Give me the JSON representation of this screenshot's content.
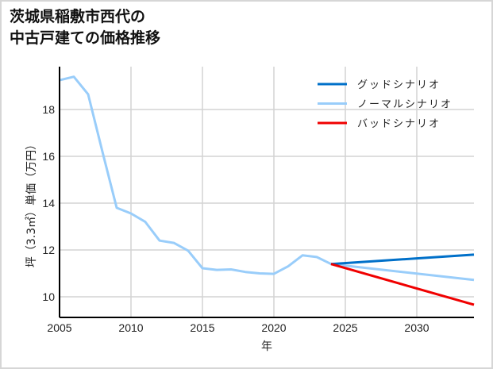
{
  "chart_data": {
    "type": "line",
    "title": "茨城県稲敷市西代の中古戸建ての価格推移",
    "title_lines": [
      "茨城県稲敷市西代の",
      "中古戸建ての価格推移"
    ],
    "xlabel": "年",
    "ylabel": "坪（3.3㎡）単価（万円）",
    "xlim": [
      2005,
      2034
    ],
    "ylim": [
      9.2,
      19.5
    ],
    "x_ticks": [
      2005,
      2010,
      2015,
      2020,
      2025,
      2030
    ],
    "y_ticks": [
      10,
      12,
      14,
      16,
      18
    ],
    "grid": true,
    "legend_position": "upper right",
    "series": [
      {
        "name": "グッドシナリオ",
        "color": "#0070c9",
        "x": [
          2024,
          2034
        ],
        "values": [
          11.4,
          11.8
        ]
      },
      {
        "name": "ノーマルシナリオ",
        "color": "#99cdfa",
        "x": [
          2005,
          2006,
          2007,
          2008,
          2009,
          2010,
          2011,
          2012,
          2013,
          2014,
          2015,
          2016,
          2017,
          2018,
          2019,
          2020,
          2021,
          2022,
          2023,
          2024,
          2034
        ],
        "values": [
          19.25,
          19.4,
          18.65,
          16.2,
          13.8,
          13.56,
          13.2,
          12.4,
          12.3,
          11.97,
          11.22,
          11.15,
          11.17,
          11.06,
          11.0,
          10.98,
          11.3,
          11.77,
          11.7,
          11.4,
          10.72
        ]
      },
      {
        "name": "バッドシナリオ",
        "color": "#f00000",
        "x": [
          2024,
          2034
        ],
        "values": [
          11.4,
          9.66
        ]
      }
    ]
  }
}
